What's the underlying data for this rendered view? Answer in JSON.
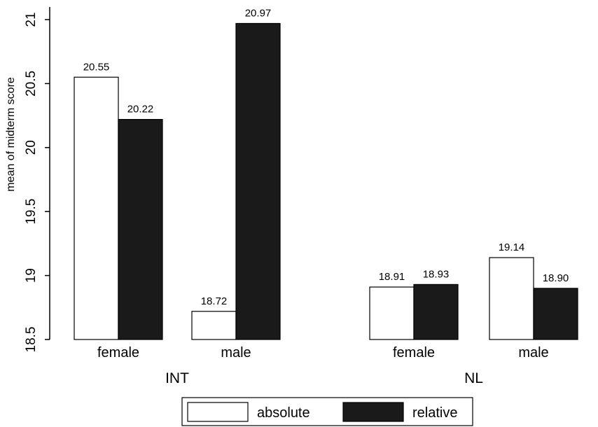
{
  "chart_data": {
    "type": "bar",
    "ylabel": "mean of midterm score",
    "ylim": [
      18.5,
      21
    ],
    "yticks": [
      "18.5",
      "19",
      "19.5",
      "20",
      "20.5",
      "21"
    ],
    "grid": false,
    "legend_position": "bottom",
    "groups": [
      {
        "name": "INT",
        "categories": [
          {
            "name": "female",
            "values": [
              {
                "series": "absolute",
                "value": 20.55,
                "label": "20.55"
              },
              {
                "series": "relative",
                "value": 20.22,
                "label": "20.22"
              }
            ]
          },
          {
            "name": "male",
            "values": [
              {
                "series": "absolute",
                "value": 18.72,
                "label": "18.72"
              },
              {
                "series": "relative",
                "value": 20.97,
                "label": "20.97"
              }
            ]
          }
        ]
      },
      {
        "name": "NL",
        "categories": [
          {
            "name": "female",
            "values": [
              {
                "series": "absolute",
                "value": 18.91,
                "label": "18.91"
              },
              {
                "series": "relative",
                "value": 18.93,
                "label": "18.93"
              }
            ]
          },
          {
            "name": "male",
            "values": [
              {
                "series": "absolute",
                "value": 19.14,
                "label": "19.14"
              },
              {
                "series": "relative",
                "value": 18.9,
                "label": "18.90"
              }
            ]
          }
        ]
      }
    ],
    "series": [
      {
        "name": "absolute",
        "fill": "#ffffff",
        "stroke": "#000000"
      },
      {
        "name": "relative",
        "fill": "#1a1a1a",
        "stroke": "#000000"
      }
    ]
  }
}
